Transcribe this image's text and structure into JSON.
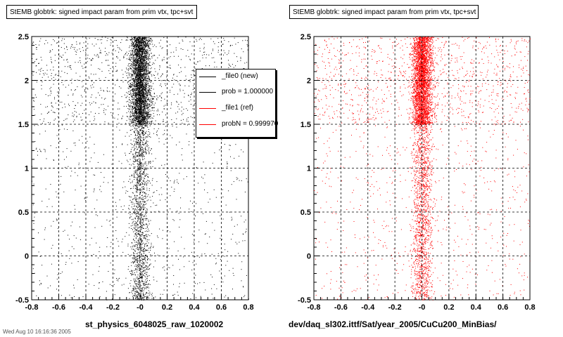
{
  "chart_data": [
    {
      "type": "scatter",
      "title": "StEMB globtrk: signed impact param from prim vtx, tpc+svt",
      "xlabel": "st_physics_6048025_raw_1020002",
      "xlim": [
        -0.8,
        0.8
      ],
      "ylim": [
        -0.5,
        2.5
      ],
      "x_ticks": [
        "-0.8",
        "-0.6",
        "-0.4",
        "-0.2",
        "-0",
        "0.2",
        "0.4",
        "0.6",
        "0.8"
      ],
      "y_ticks": [
        "-0.5",
        "0",
        "0.5",
        "1",
        "1.5",
        "2",
        "2.5"
      ],
      "grid": true,
      "marker_color": "#000000",
      "series": [
        {
          "name": "_file0 (new)",
          "values": []
        }
      ],
      "legend": {
        "placement": "top-right",
        "entries": [
          {
            "label": "_file0 (new)",
            "color": "#000000"
          },
          {
            "label": "prob = 1.000000",
            "color": "#000000"
          },
          {
            "label": "_file1 (ref)",
            "color": "#ff0000"
          },
          {
            "label": "probN = 0.999970",
            "color": "#ff0000"
          }
        ]
      }
    },
    {
      "type": "scatter",
      "title": "StEMB globtrk: signed impact param from prim vtx, tpc+svt",
      "xlabel": "dev/daq_sl302.ittf/Sat/year_2005/CuCu200_MinBias/",
      "xlim": [
        -0.8,
        0.8
      ],
      "ylim": [
        -0.5,
        2.5
      ],
      "x_ticks": [
        "-0.8",
        "-0.6",
        "-0.4",
        "-0.2",
        "-0",
        "0.2",
        "0.4",
        "0.6",
        "0.8"
      ],
      "y_ticks": [
        "-0.5",
        "0",
        "0.5",
        "1",
        "1.5",
        "2",
        "2.5"
      ],
      "grid": true,
      "marker_color": "#ff0000",
      "series": [
        {
          "name": "_file1 (ref)",
          "values": []
        }
      ]
    }
  ],
  "footer_text": "Wed Aug 10 16:16:36 2005"
}
